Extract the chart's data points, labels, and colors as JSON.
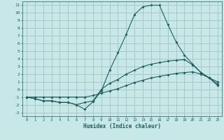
{
  "xlabel": "Humidex (Indice chaleur)",
  "bg_color": "#c8e8e8",
  "grid_color": "#a8c8c8",
  "line_color": "#1a6060",
  "xlim": [
    -0.5,
    23.5
  ],
  "ylim": [
    -3.5,
    11.5
  ],
  "xticks": [
    0,
    1,
    2,
    3,
    4,
    5,
    6,
    7,
    8,
    9,
    10,
    11,
    12,
    13,
    14,
    15,
    16,
    17,
    18,
    19,
    20,
    21,
    22,
    23
  ],
  "yticks": [
    -3,
    -2,
    -1,
    0,
    1,
    2,
    3,
    4,
    5,
    6,
    7,
    8,
    9,
    10,
    11
  ],
  "line1_x": [
    0,
    1,
    2,
    3,
    4,
    5,
    6,
    7,
    8,
    9,
    10,
    11,
    12,
    13,
    14,
    15,
    16,
    17,
    18,
    19,
    20,
    21,
    22,
    23
  ],
  "line1_y": [
    -1,
    -1.2,
    -1.5,
    -1.5,
    -1.7,
    -1.7,
    -2.0,
    -2.6,
    -1.6,
    -0.2,
    2.5,
    4.8,
    7.2,
    9.8,
    10.8,
    11.0,
    11.0,
    8.5,
    6.2,
    4.5,
    3.3,
    2.2,
    1.5,
    1.0
  ],
  "line2_x": [
    0,
    1,
    2,
    3,
    4,
    5,
    6,
    7,
    8,
    9,
    10,
    11,
    12,
    13,
    14,
    15,
    16,
    17,
    18,
    19,
    20,
    21,
    22,
    23
  ],
  "line2_y": [
    -1.0,
    -1.2,
    -1.5,
    -1.5,
    -1.7,
    -1.7,
    -2.0,
    -1.7,
    -1.5,
    0.0,
    0.8,
    1.3,
    2.0,
    2.5,
    3.0,
    3.3,
    3.5,
    3.7,
    3.8,
    3.9,
    3.2,
    2.2,
    1.5,
    0.7
  ],
  "line3_x": [
    0,
    1,
    2,
    3,
    4,
    5,
    6,
    7,
    8,
    9,
    10,
    11,
    12,
    13,
    14,
    15,
    16,
    17,
    18,
    19,
    20,
    21,
    22,
    23
  ],
  "line3_y": [
    -1.0,
    -1.0,
    -1.0,
    -1.0,
    -1.0,
    -1.0,
    -1.0,
    -1.0,
    -0.8,
    -0.5,
    -0.2,
    0.1,
    0.5,
    0.9,
    1.2,
    1.5,
    1.7,
    1.9,
    2.1,
    2.2,
    2.3,
    2.0,
    1.5,
    0.5
  ]
}
